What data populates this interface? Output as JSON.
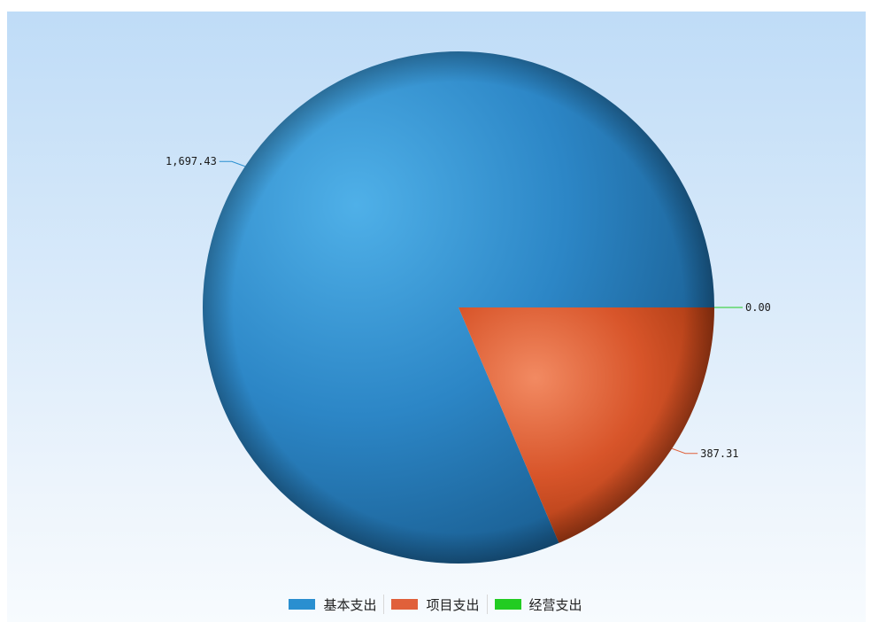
{
  "chart_data": {
    "type": "pie",
    "categories": [
      "基本支出",
      "项目支出",
      "经营支出"
    ],
    "values": [
      1697.43,
      387.31,
      0.0
    ],
    "value_labels": [
      "1,697.43",
      "387.31",
      "0.00"
    ],
    "colors": [
      "#2a8fd0",
      "#e0603a",
      "#22cc22"
    ],
    "title": "",
    "legend_position": "bottom"
  },
  "legend": {
    "items": [
      {
        "label": "基本支出",
        "color": "#2a8fd0"
      },
      {
        "label": "项目支出",
        "color": "#e0603a"
      },
      {
        "label": "经营支出",
        "color": "#22cc22"
      }
    ]
  }
}
